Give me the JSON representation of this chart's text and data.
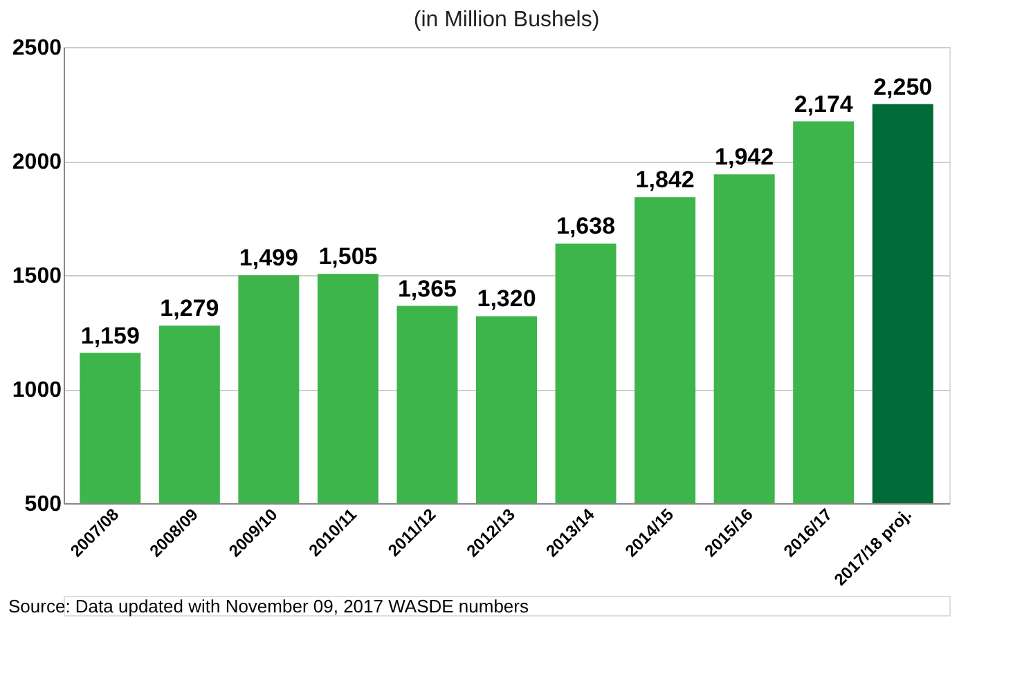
{
  "chart_data": {
    "type": "bar",
    "subtitle": "(in Million Bushels)",
    "categories": [
      "2007/08",
      "2008/09",
      "2009/10",
      "2010/11",
      "2011/12",
      "2012/13",
      "2013/14",
      "2014/15",
      "2015/16",
      "2016/17",
      "2017/18 proj."
    ],
    "values": [
      1159,
      1279,
      1499,
      1505,
      1365,
      1320,
      1638,
      1842,
      1942,
      2174,
      2250
    ],
    "colors": [
      "#3db54a",
      "#3db54a",
      "#3db54a",
      "#3db54a",
      "#3db54a",
      "#3db54a",
      "#3db54a",
      "#3db54a",
      "#3db54a",
      "#3db54a",
      "#006a38"
    ],
    "value_labels": [
      "1,159",
      "1,279",
      "1,499",
      "1,505",
      "1,365",
      "1,320",
      "1,638",
      "1,842",
      "1,942",
      "2,174",
      "2,250"
    ],
    "ylim": [
      500,
      2500
    ],
    "yticks": [
      500,
      1000,
      1500,
      2000,
      2500
    ],
    "grid": "y",
    "annotations": [
      "Source: Data updated with November 09, 2017 WASDE numbers"
    ]
  }
}
